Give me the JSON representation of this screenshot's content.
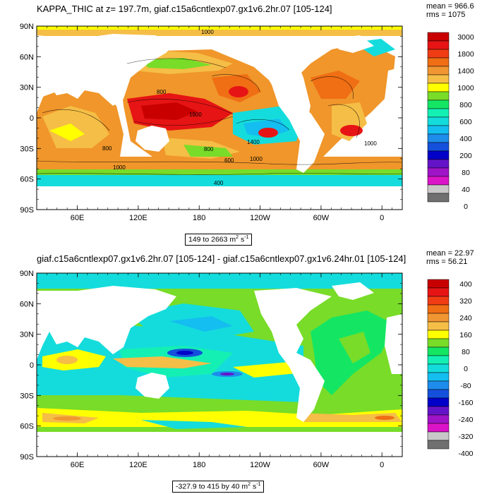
{
  "chart_data": [
    {
      "type": "heatmap",
      "title": "KAPPA_THIC at z= 197.7m, giaf.c15a6cntlexp07.gx1v6.2hr.07 [105-124]",
      "mean_label": "mean = 966.6",
      "rms_label": "rms = 1075",
      "range_label": "149 to 2663 m",
      "units_sup": "2",
      "units_tail": " s",
      "units_sup2": "-1",
      "y_ticks": [
        "90N",
        "60N",
        "30N",
        "0",
        "30S",
        "60S",
        "90S"
      ],
      "x_ticks": [
        "60E",
        "120E",
        "180",
        "120W",
        "60W",
        "0"
      ],
      "colorbar_labels": [
        "3000",
        "1800",
        "1400",
        "1000",
        "800",
        "600",
        "400",
        "200",
        "80",
        "40",
        "0"
      ],
      "colorbar_colors": [
        "#c80000",
        "#e61414",
        "#f03c14",
        "#f06e14",
        "#f09632",
        "#f5be46",
        "#ffff00",
        "#78dc28",
        "#14e664",
        "#14f0b4",
        "#14dcdc",
        "#14bef0",
        "#1e8ceb",
        "#1450dc",
        "#0000c8",
        "#6414c8",
        "#a014c8",
        "#dc14c8",
        "#c8c8c8",
        "#707070"
      ],
      "contour_labels": [
        "1000",
        "800",
        "1800",
        "1400",
        "1000",
        "600",
        "400",
        "800",
        "1000",
        "800",
        "1000"
      ]
    },
    {
      "type": "heatmap",
      "title": "giaf.c15a6cntlexp07.gx1v6.2hr.07 [105-124] - giaf.c15a6cntlexp07.gx1v6.24hr.01 [105-124]",
      "mean_label": "mean = 22.97",
      "rms_label": "rms = 56.21",
      "range_label": "-327.9 to 415 by 40 m",
      "units_sup": "2",
      "units_tail": " s",
      "units_sup2": "-1",
      "y_ticks": [
        "90N",
        "60N",
        "30N",
        "0",
        "30S",
        "60S",
        "90S"
      ],
      "x_ticks": [
        "60E",
        "120E",
        "180",
        "120W",
        "60W",
        "0"
      ],
      "colorbar_labels": [
        "400",
        "320",
        "240",
        "160",
        "80",
        "0",
        "-80",
        "-160",
        "-240",
        "-320",
        "-400"
      ],
      "colorbar_colors": [
        "#c80000",
        "#e61414",
        "#f03c14",
        "#f06e14",
        "#f09632",
        "#f5be46",
        "#ffff00",
        "#78dc28",
        "#14e664",
        "#14f0b4",
        "#14dcdc",
        "#14bef0",
        "#1e8ceb",
        "#1450dc",
        "#0000c8",
        "#6414c8",
        "#a014c8",
        "#dc14c8",
        "#c8c8c8",
        "#707070"
      ]
    }
  ]
}
